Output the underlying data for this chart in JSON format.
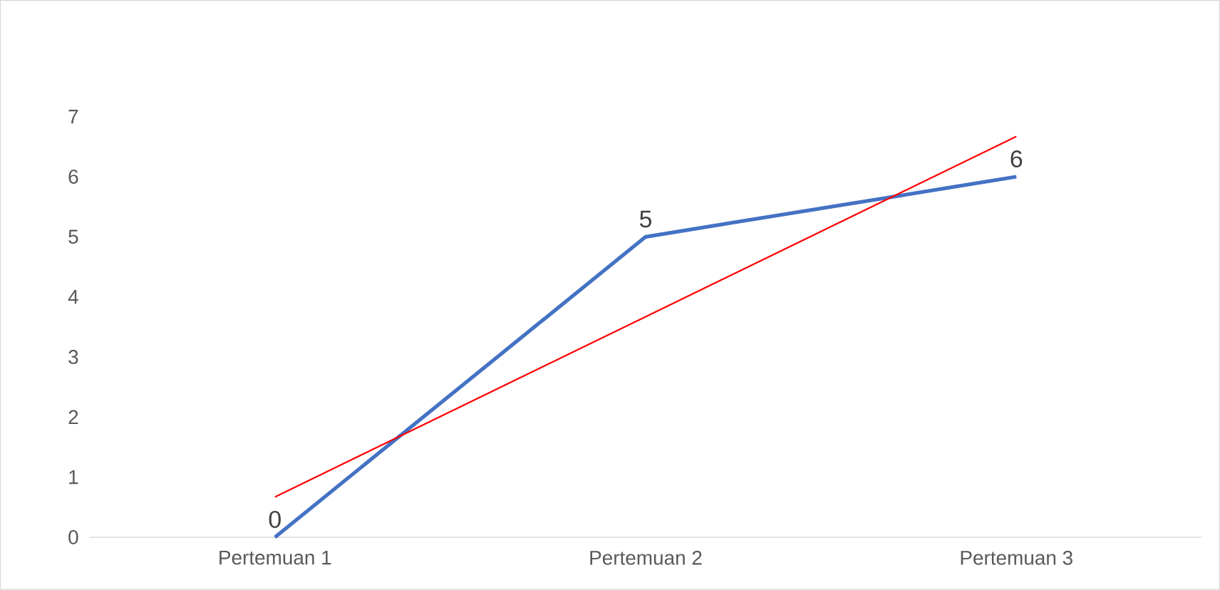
{
  "chart_data": {
    "type": "line",
    "categories": [
      "Pertemuan 1",
      "Pertemuan 2",
      "Pertemuan 3"
    ],
    "series": [
      {
        "color": "#4472c4",
        "values": [
          0,
          5,
          6
        ],
        "value_labels": [
          "0",
          "5",
          "6"
        ]
      },
      {
        "type": "line",
        "color": "#ff0000",
        "values": [
          0.67,
          3.67,
          6.67
        ]
      }
    ],
    "ylim": [
      0,
      7
    ],
    "yticks": [
      0,
      1,
      2,
      3,
      4,
      5,
      6,
      7
    ]
  }
}
